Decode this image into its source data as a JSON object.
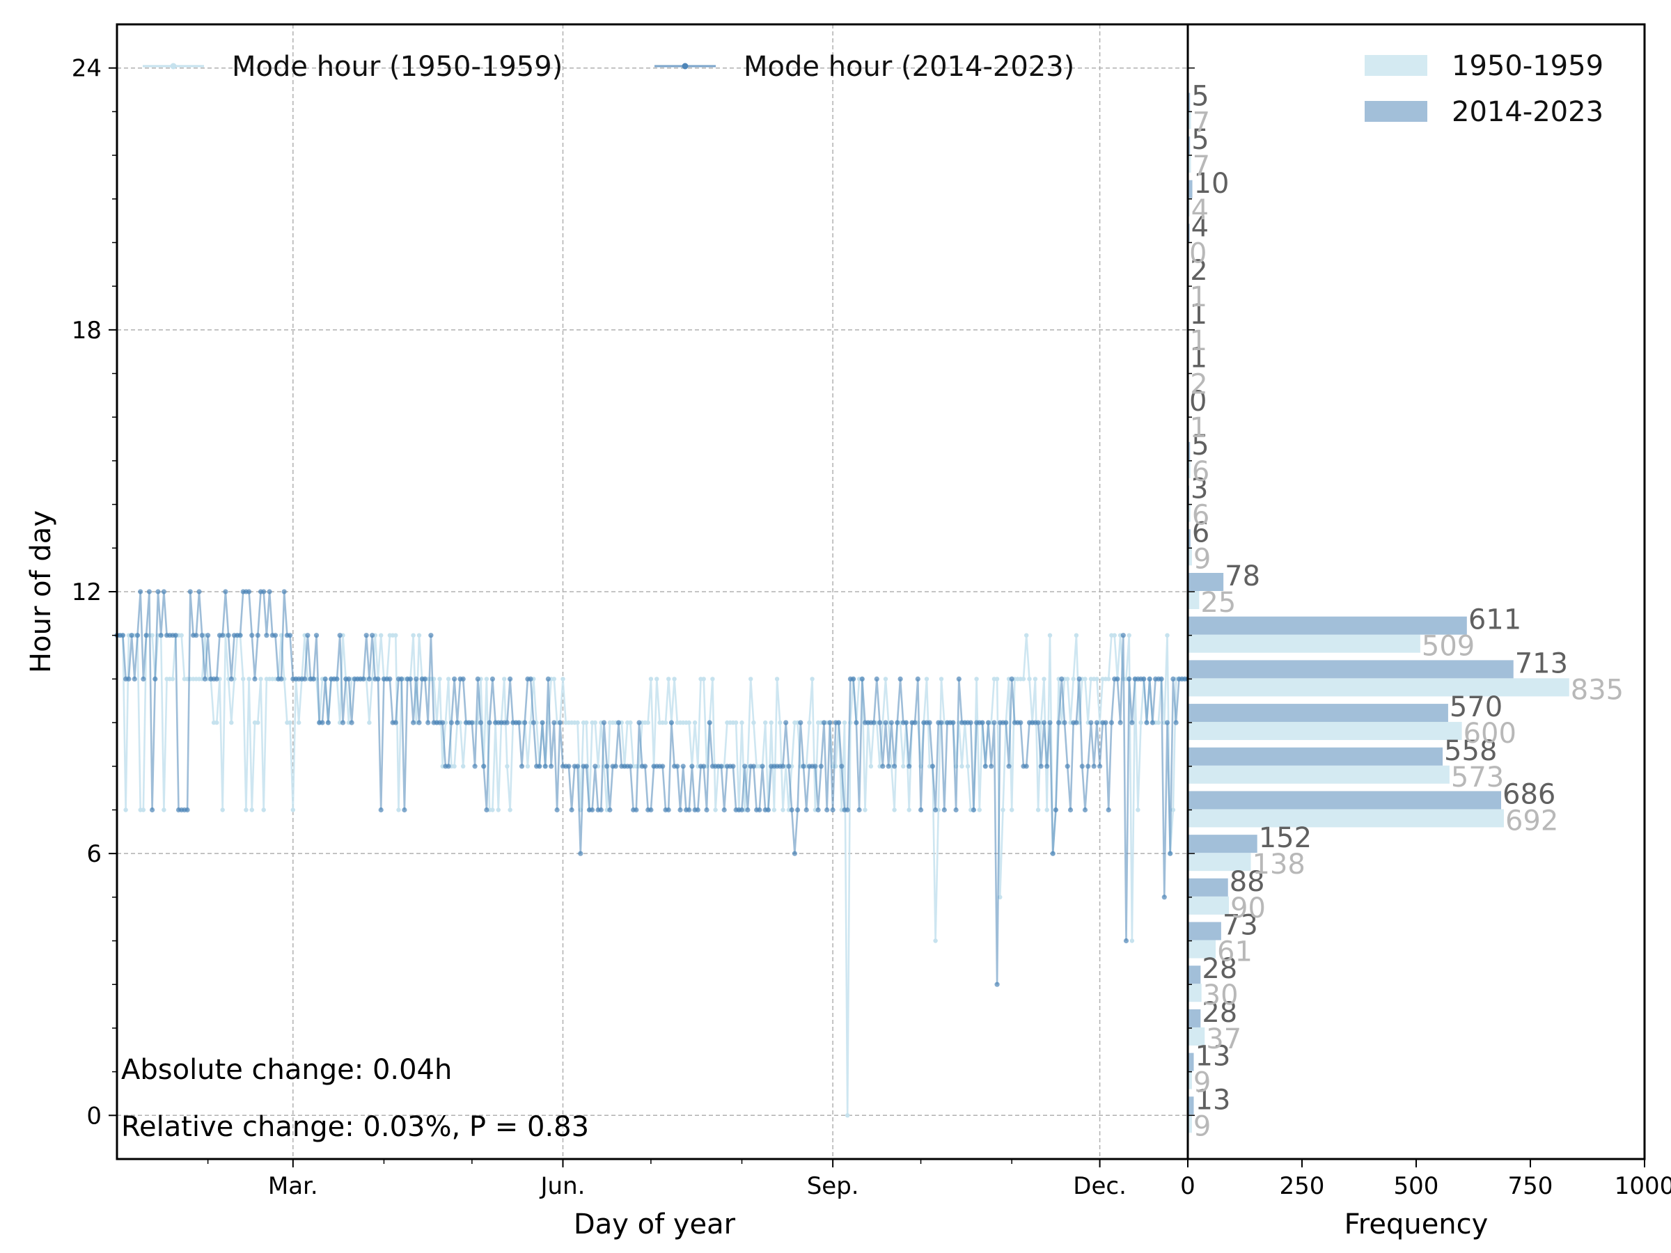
{
  "chart_data": [
    {
      "type": "line",
      "xlabel": "Day of year",
      "ylabel": "Hour of day",
      "xlim": [
        1,
        366
      ],
      "ylim": [
        -1,
        25
      ],
      "x_ticks": [
        {
          "label": "Mar.",
          "value": 61
        },
        {
          "label": "Jun.",
          "value": 153
        },
        {
          "label": "Sep.",
          "value": 245
        },
        {
          "label": "Dec.",
          "value": 336
        }
      ],
      "y_ticks": [
        0,
        6,
        12,
        18,
        24
      ],
      "grid": true,
      "legend": "top-left",
      "series": [
        {
          "name": "Mode hour (1950-1959)",
          "color": "#c6e2ee",
          "segments": [
            [
              1,
              24,
              11
            ],
            [
              25,
              60,
              10
            ],
            [
              61,
              110,
              10
            ],
            [
              111,
              150,
              9
            ],
            [
              151,
              200,
              9
            ],
            [
              201,
              250,
              9
            ],
            [
              251,
              300,
              9
            ],
            [
              301,
              340,
              10
            ],
            [
              341,
              366,
              10
            ]
          ],
          "alternates": [
            7,
            8,
            9,
            10,
            11
          ],
          "spikes": [
            [
              250,
              0
            ],
            [
              280,
              4
            ],
            [
              302,
              5
            ],
            [
              320,
              6
            ],
            [
              347,
              4
            ],
            [
              360,
              6
            ]
          ]
        },
        {
          "name": "Mode hour (2014-2023)",
          "color": "#4f86b8",
          "segments": [
            [
              1,
              8,
              11
            ],
            [
              9,
              14,
              11
            ],
            [
              15,
              60,
              11
            ],
            [
              61,
              108,
              10
            ],
            [
              109,
              150,
              9
            ],
            [
              151,
              200,
              8
            ],
            [
              201,
              250,
              8
            ],
            [
              251,
              300,
              9
            ],
            [
              301,
              340,
              9
            ],
            [
              341,
              366,
              10
            ]
          ],
          "alternates": [
            7,
            8,
            9,
            10,
            11,
            12
          ],
          "spikes": [
            [
              9,
              12
            ],
            [
              12,
              12
            ],
            [
              15,
              12
            ],
            [
              159,
              6
            ],
            [
              232,
              6
            ],
            [
              252,
              10
            ],
            [
              301,
              3
            ],
            [
              320,
              6
            ],
            [
              345,
              4
            ],
            [
              358,
              5
            ],
            [
              360,
              6
            ]
          ]
        }
      ],
      "annotations": [
        "Absolute change: 0.04h",
        "Relative change: 0.03%, P = 0.83"
      ]
    },
    {
      "type": "bar",
      "orientation": "horizontal",
      "xlabel": "Frequency",
      "xlim": [
        0,
        1000
      ],
      "x_ticks": [
        0,
        250,
        500,
        750,
        1000
      ],
      "hours": [
        0,
        1,
        2,
        3,
        4,
        5,
        6,
        7,
        8,
        9,
        10,
        11,
        12,
        13,
        14,
        15,
        16,
        17,
        18,
        19,
        20,
        21,
        22,
        23
      ],
      "legend": "top-right",
      "series": [
        {
          "name": "1950-1959",
          "color": "#d4eaf2",
          "values": [
            9,
            9,
            37,
            30,
            61,
            90,
            138,
            692,
            573,
            600,
            835,
            509,
            25,
            9,
            6,
            6,
            1,
            2,
            1,
            1,
            0,
            4,
            7,
            7
          ]
        },
        {
          "name": "2014-2023",
          "color": "#a2bfd9",
          "values": [
            13,
            13,
            28,
            28,
            73,
            88,
            152,
            686,
            558,
            570,
            713,
            611,
            78,
            6,
            3,
            5,
            0,
            1,
            1,
            2,
            4,
            10,
            5,
            5
          ]
        }
      ]
    }
  ]
}
